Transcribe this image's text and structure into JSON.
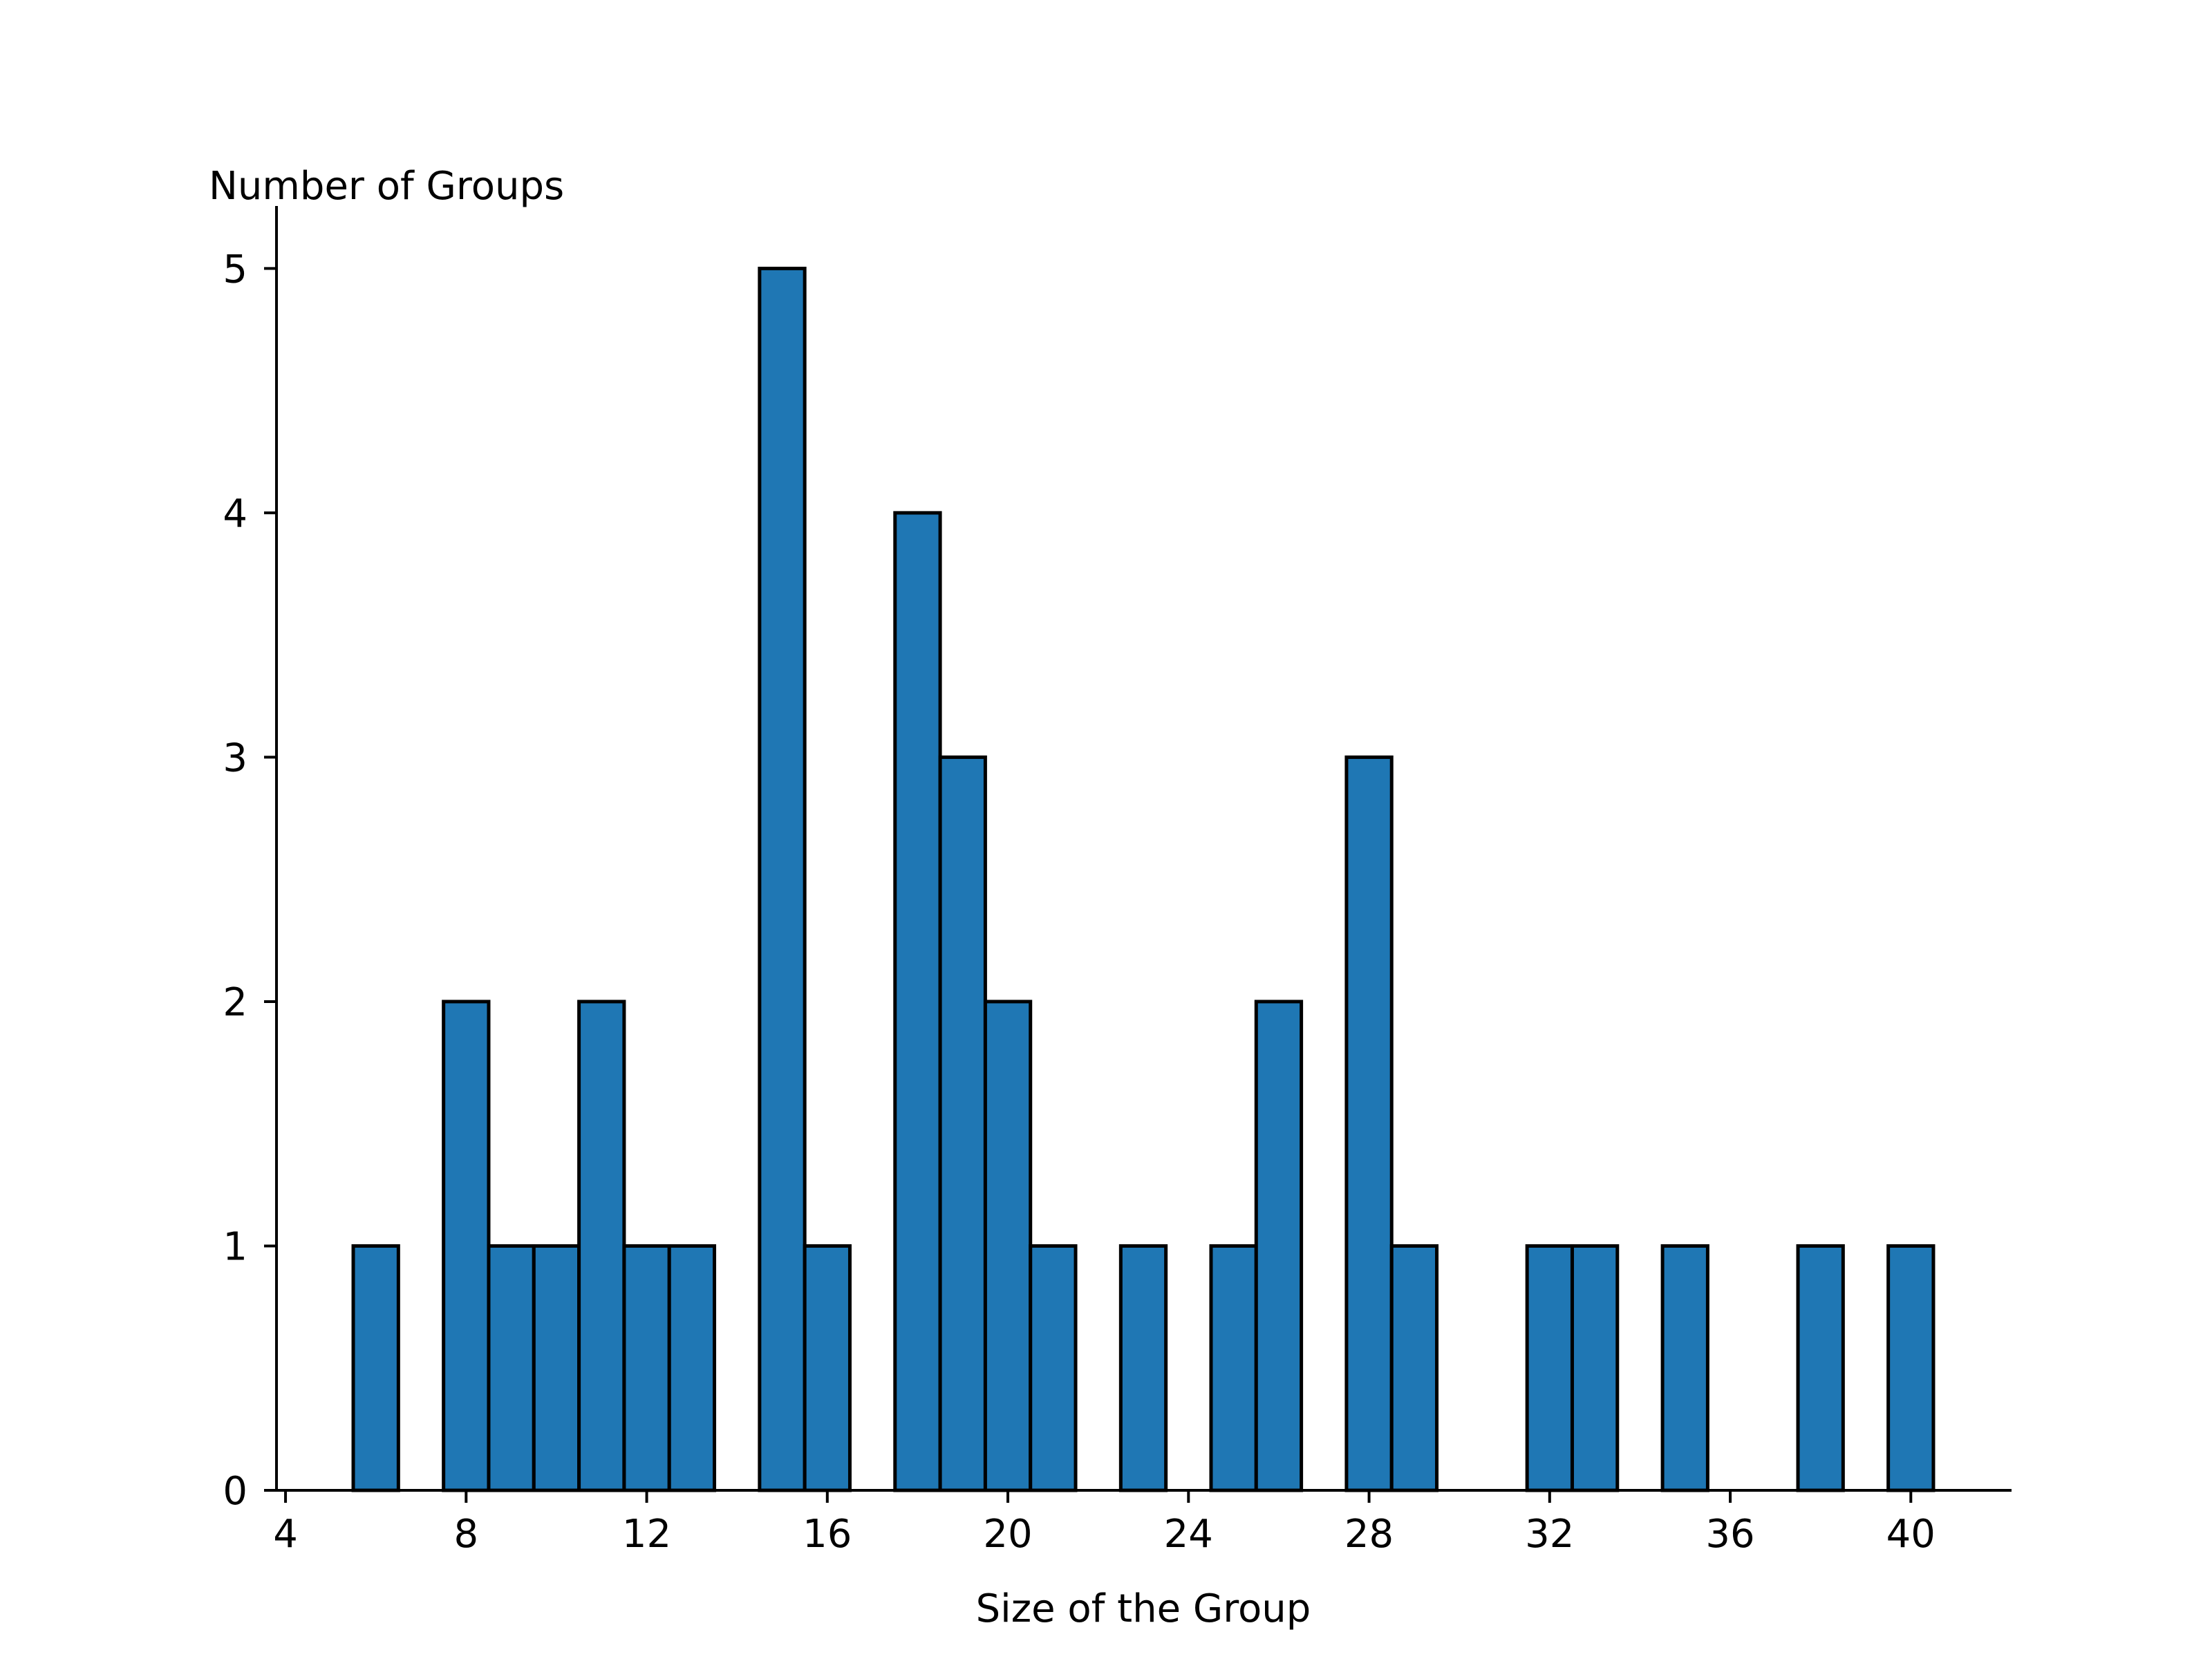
{
  "chart_data": {
    "type": "bar",
    "title": "",
    "xlabel": "Size of the Group",
    "ylabel": "Number of Groups",
    "x": [
      6,
      8,
      9,
      10,
      11,
      12,
      13,
      15,
      16,
      18,
      19,
      20,
      21,
      23,
      25,
      26,
      28,
      29,
      32,
      33,
      35,
      38,
      40
    ],
    "values": [
      1,
      2,
      1,
      1,
      2,
      1,
      1,
      5,
      1,
      4,
      3,
      2,
      1,
      1,
      1,
      2,
      3,
      1,
      1,
      1,
      1,
      1,
      1
    ],
    "bar_width": 1,
    "xlim": [
      3.8,
      42.2
    ],
    "ylim": [
      0,
      5.25
    ],
    "xticks": [
      4,
      8,
      12,
      16,
      20,
      24,
      28,
      32,
      36,
      40
    ],
    "yticks": [
      0,
      1,
      2,
      3,
      4,
      5
    ],
    "grid": false,
    "legend": "none",
    "colors": {
      "bar_fill": "#1f77b4",
      "bar_edge": "#000000",
      "axis": "#000000"
    }
  }
}
